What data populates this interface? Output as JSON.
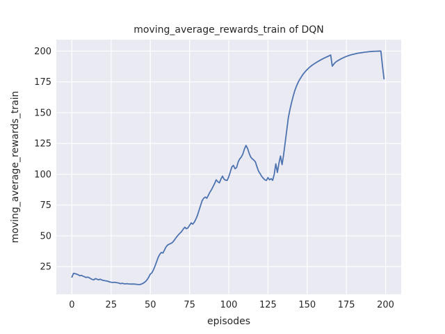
{
  "figure": {
    "title": "moving_average_rewards_train of DQN",
    "xlabel": "episodes",
    "ylabel": "moving_average_rewards_train"
  },
  "chart_data": {
    "type": "line",
    "title": "moving_average_rewards_train of DQN",
    "xlabel": "episodes",
    "ylabel": "moving_average_rewards_train",
    "xticks": [
      0,
      25,
      50,
      75,
      100,
      125,
      150,
      175,
      200
    ],
    "yticks": [
      25,
      50,
      75,
      100,
      125,
      150,
      175,
      200
    ],
    "xlim": [
      -9.95,
      209.95
    ],
    "ylim": [
      2.5,
      209.3
    ],
    "grid": true,
    "legend_position": "none",
    "style": {
      "plot_bg": "#eaeaf2",
      "grid_color": "#ffffff",
      "line_color": "#4c72b0",
      "text_color": "#262626",
      "line_width": 1.8
    },
    "series": [
      {
        "name": "moving_average_rewards_train",
        "color": "#4c72b0",
        "x_start": 0,
        "x_step": 1,
        "y": [
          16.5,
          19.6,
          19.3,
          18.9,
          18.4,
          17.6,
          17.9,
          17.3,
          16.8,
          16.2,
          16.5,
          16.0,
          15.2,
          14.6,
          14.3,
          15.3,
          14.8,
          14.3,
          14.8,
          14.2,
          13.8,
          13.6,
          13.4,
          13.1,
          12.6,
          12.3,
          12.1,
          12.3,
          12.1,
          11.9,
          11.6,
          11.2,
          11.5,
          11.2,
          11.0,
          11.2,
          11.0,
          10.9,
          10.8,
          10.9,
          10.8,
          10.7,
          10.5,
          10.4,
          10.7,
          11.2,
          12.0,
          13.0,
          14.5,
          16.5,
          19.0,
          20.0,
          22.5,
          25.5,
          29.0,
          32.5,
          35.0,
          36.5,
          36.0,
          38.5,
          41.0,
          42.5,
          43.2,
          43.8,
          44.5,
          46.0,
          47.8,
          49.5,
          51.0,
          52.3,
          53.6,
          55.5,
          57.0,
          55.8,
          56.5,
          58.5,
          60.5,
          59.5,
          61.0,
          63.5,
          66.5,
          70.5,
          74.5,
          78.5,
          80.5,
          81.5,
          80.5,
          83.0,
          85.5,
          87.5,
          90.0,
          92.5,
          95.5,
          94.0,
          93.0,
          96.0,
          98.5,
          96.0,
          95.2,
          95.0,
          98.0,
          102.0,
          106.0,
          107.2,
          104.5,
          105.5,
          110.0,
          112.5,
          114.0,
          116.5,
          120.5,
          123.4,
          121.0,
          117.0,
          114.0,
          112.5,
          111.5,
          110.0,
          106.0,
          102.5,
          100.5,
          98.3,
          96.8,
          95.5,
          95.0,
          97.3,
          95.5,
          96.4,
          95.1,
          100.0,
          108.5,
          101.5,
          109.0,
          114.8,
          107.8,
          116.0,
          126.0,
          136.0,
          146.0,
          152.5,
          158.0,
          163.0,
          167.5,
          171.0,
          174.0,
          176.5,
          178.5,
          180.5,
          182.2,
          183.7,
          185.0,
          186.3,
          187.4,
          188.4,
          189.3,
          190.1,
          190.9,
          191.7,
          192.4,
          193.1,
          193.8,
          194.4,
          195.0,
          195.6,
          196.2,
          196.8,
          187.8,
          189.5,
          190.9,
          191.8,
          192.6,
          193.3,
          194.0,
          194.6,
          195.2,
          195.7,
          196.2,
          196.6,
          197.0,
          197.3,
          197.6,
          197.9,
          198.2,
          198.4,
          198.6,
          198.8,
          199.0,
          199.2,
          199.3,
          199.5,
          199.6,
          199.7,
          199.8,
          199.85,
          199.9,
          199.95,
          200.0,
          200.0,
          188.0,
          177.5
        ]
      }
    ]
  }
}
